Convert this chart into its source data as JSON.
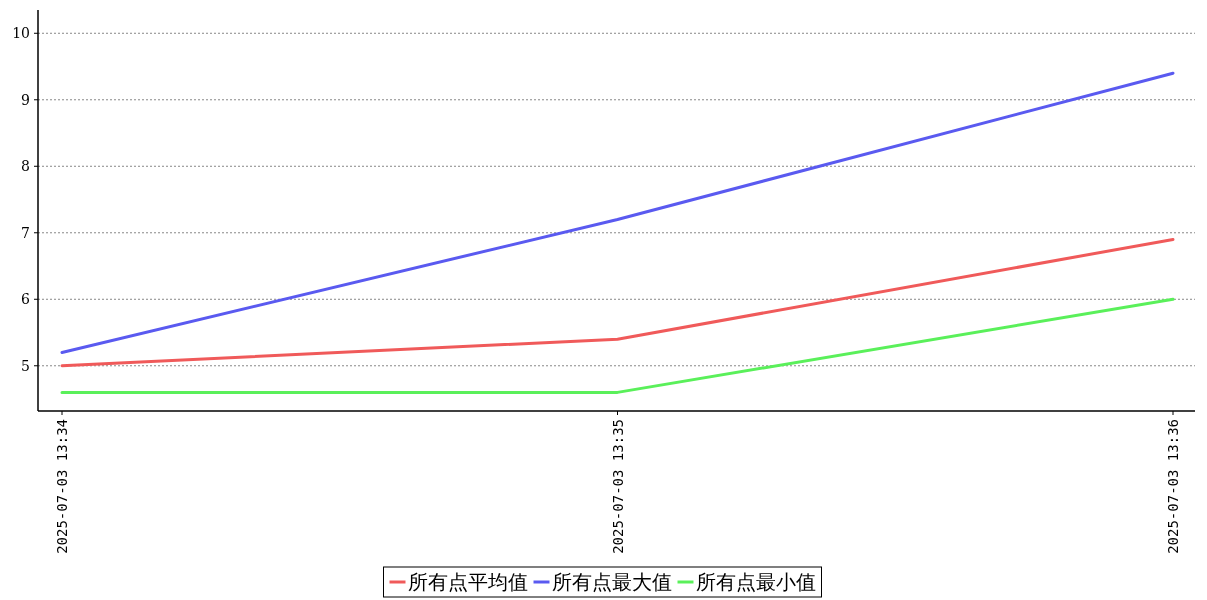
{
  "chart_data": {
    "type": "line",
    "categories": [
      "2025-07-03 13:34",
      "2025-07-03 13:35",
      "2025-07-03 13:36"
    ],
    "series": [
      {
        "name": "所有点平均值",
        "color": "#f05a5a",
        "values": [
          5.0,
          5.4,
          6.9
        ]
      },
      {
        "name": "所有点最大值",
        "color": "#5a5af0",
        "values": [
          5.2,
          7.2,
          9.4
        ]
      },
      {
        "name": "所有点最小值",
        "color": "#5af05a",
        "values": [
          4.6,
          4.6,
          6.0
        ]
      }
    ],
    "ylim": [
      4.32,
      10.35
    ],
    "yticks": [
      5,
      6,
      7,
      8,
      9,
      10
    ],
    "grid": "y",
    "legend": "bottom",
    "line_style": "solid",
    "marker": "none"
  }
}
